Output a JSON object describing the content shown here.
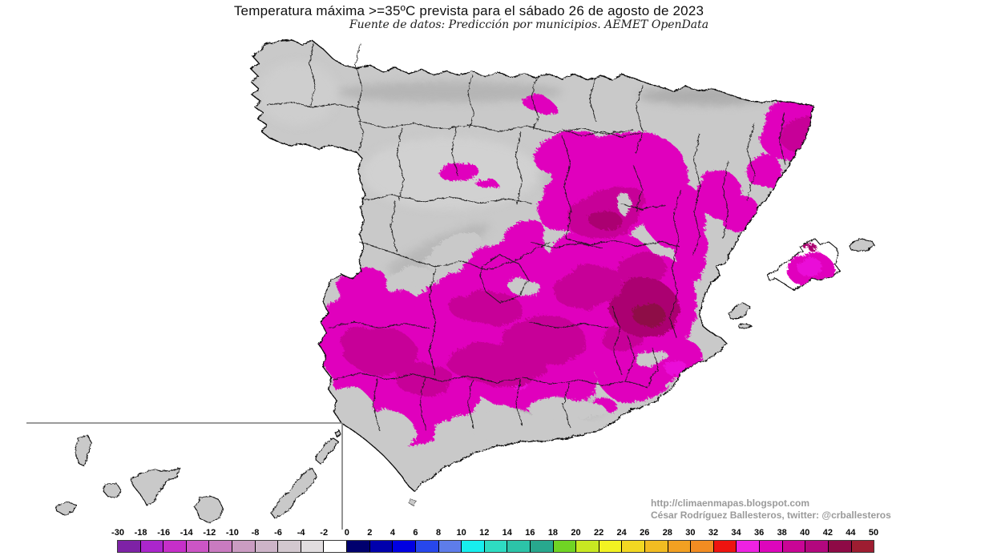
{
  "title": "Temperatura máxima >=35ºC prevista para el sábado 26 de agosto de 2023",
  "subtitle": "Fuente de datos: Predicción por municipios. AEMET OpenData",
  "attribution": {
    "url": "http://climaenmapas.blogspot.com",
    "author": "César Rodríguez Ballesteros, twitter: @crballesteros"
  },
  "colorbar": {
    "tick_labels": [
      "-30",
      "-18",
      "-16",
      "-14",
      "-12",
      "-10",
      "-8",
      "-6",
      "-4",
      "-2",
      "0",
      "2",
      "4",
      "6",
      "8",
      "10",
      "12",
      "14",
      "16",
      "18",
      "20",
      "22",
      "24",
      "26",
      "28",
      "30",
      "32",
      "34",
      "36",
      "38",
      "40",
      "42",
      "44",
      "50"
    ],
    "segment_colors": [
      "#7E22A6",
      "#AB26CC",
      "#C62FC9",
      "#CC55C5",
      "#C97BC0",
      "#CA9CC2",
      "#CDB4C8",
      "#D3C8CF",
      "#E1DDDF",
      "#FFFFFF",
      "#00006E",
      "#0000AC",
      "#0000E2",
      "#2747EC",
      "#5E7DEA",
      "#17EEEE",
      "#2EDCC2",
      "#2CC3A8",
      "#28A88E",
      "#70D424",
      "#C8E822",
      "#F2F222",
      "#F2D822",
      "#F2BC22",
      "#F2A022",
      "#F28C22",
      "#EE1410",
      "#EE22E2",
      "#DD06BC",
      "#C90596",
      "#B3077E",
      "#8E0A46",
      "#9E1D31"
    ]
  },
  "map": {
    "land_color": "#c9c9c9",
    "sea_color": "#ffffff",
    "boundary_color": "#161616",
    "coast_color": "#0b0b0b",
    "inset_border_color": "#7a7a7a",
    "overlay_colors": {
      "t34_36": "#ea10d8",
      "t36_38": "#e004bd",
      "t38_40": "#c70398",
      "t40_42": "#ab0671",
      "t42_44": "#8e0a46"
    }
  }
}
